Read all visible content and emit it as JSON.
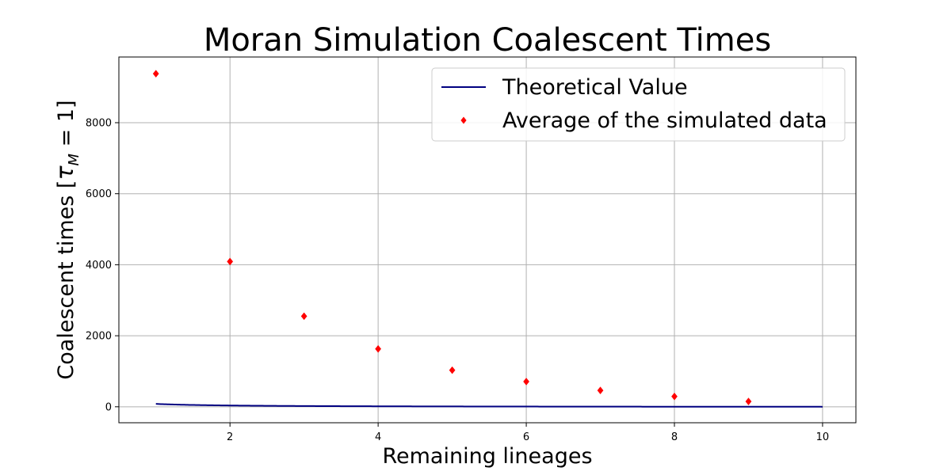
{
  "chart_data": {
    "type": "line",
    "title": "Moran Simulation Coalescent Times",
    "xlabel": "Remaining lineages",
    "ylabel": "Coalescent times [τ_M = 1]",
    "ylabel_parts": {
      "prefix": "Coalescent times [",
      "tau": "τ",
      "sub": "M",
      "suffix": " = 1]"
    },
    "xlim": [
      0.5,
      10.45
    ],
    "ylim": [
      -450,
      9850
    ],
    "xticks": [
      2,
      4,
      6,
      8,
      10
    ],
    "yticks": [
      0,
      2000,
      4000,
      6000,
      8000
    ],
    "grid": true,
    "legend_position": "top-right",
    "series": [
      {
        "name": "Theoretical Value",
        "kind": "line",
        "color": "#000080",
        "N": 10,
        "x_range": [
          1,
          10
        ],
        "formula": "N*(N-1)*(1/k - 1/N)"
      },
      {
        "name": "Average of the simulated data",
        "kind": "scatter",
        "marker": "diamond",
        "color": "#ff0000",
        "x": [
          1,
          2,
          3,
          4,
          5,
          6,
          7,
          8,
          9
        ],
        "y": [
          9380,
          4090,
          2550,
          1630,
          1030,
          710,
          460,
          290,
          150
        ]
      }
    ]
  }
}
